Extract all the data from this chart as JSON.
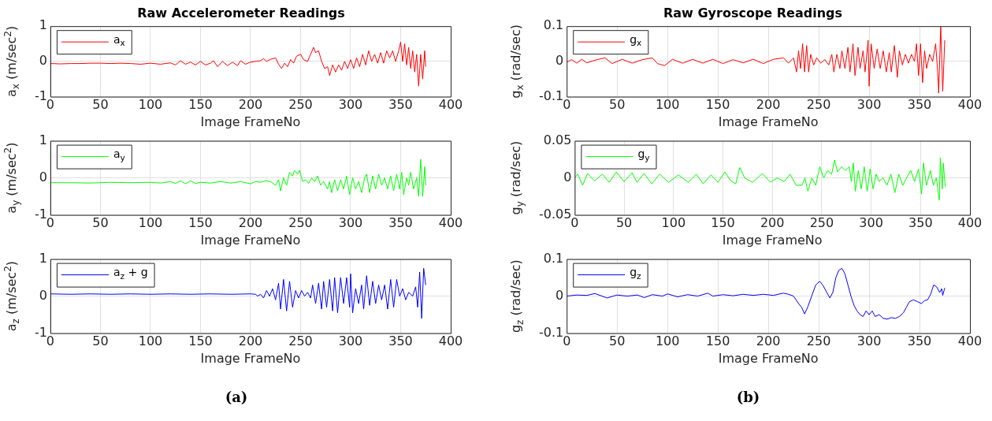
{
  "chart_data": [
    {
      "type": "line",
      "title": "Raw Accelerometer Readings",
      "xlabel": "Image FrameNo",
      "ylabel": "a$_{x}$ (m/sec$^{2}$)",
      "xlim": [
        0,
        400
      ],
      "xticks": [
        0,
        50,
        100,
        150,
        200,
        250,
        300,
        350,
        400
      ],
      "ylim": [
        -1,
        1
      ],
      "yticks": [
        -1,
        0,
        1
      ],
      "grid": true,
      "legend": "top left",
      "x": [
        0,
        10,
        20,
        30,
        40,
        50,
        60,
        70,
        80,
        90,
        100,
        110,
        120,
        125,
        130,
        135,
        140,
        145,
        150,
        155,
        160,
        163,
        167,
        172,
        177,
        182,
        187,
        190,
        195,
        200,
        205,
        210,
        213,
        216,
        220,
        225,
        228,
        231,
        234,
        237,
        240,
        243,
        246,
        250,
        253,
        257,
        260,
        263,
        265,
        268,
        271,
        274,
        277,
        279,
        282,
        285,
        288,
        291,
        294,
        297,
        300,
        303,
        306,
        309,
        312,
        315,
        318,
        321,
        324,
        327,
        330,
        333,
        336,
        339,
        342,
        345,
        348,
        350,
        352,
        354,
        356,
        358,
        360,
        362,
        364,
        366,
        368,
        370,
        372,
        374,
        375
      ],
      "series": [
        {
          "name": "a$_{x}$",
          "color": "#ff0000",
          "values": [
            -0.06,
            -0.07,
            -0.06,
            -0.06,
            -0.05,
            -0.05,
            -0.06,
            -0.05,
            -0.06,
            -0.08,
            -0.05,
            -0.08,
            -0.04,
            -0.1,
            0.02,
            -0.08,
            -0.02,
            -0.1,
            0.0,
            -0.1,
            -0.05,
            0.02,
            -0.15,
            0.0,
            -0.12,
            -0.02,
            -0.12,
            0.02,
            -0.08,
            -0.02,
            0.0,
            0.02,
            0.08,
            0.0,
            0.06,
            0.1,
            -0.08,
            -0.2,
            -0.05,
            -0.15,
            0.05,
            -0.05,
            0.15,
            0.2,
            0.05,
            0.0,
            0.2,
            0.4,
            0.25,
            0.3,
            0.0,
            -0.2,
            -0.15,
            -0.4,
            -0.1,
            -0.3,
            -0.1,
            -0.25,
            0.0,
            -0.2,
            0.05,
            -0.2,
            0.1,
            -0.15,
            0.2,
            -0.1,
            0.3,
            0.0,
            0.2,
            -0.05,
            0.25,
            -0.05,
            0.3,
            0.1,
            0.3,
            0.0,
            0.3,
            0.55,
            0.0,
            0.5,
            -0.1,
            0.4,
            -0.2,
            0.3,
            -0.3,
            0.2,
            -0.7,
            0.2,
            -0.5,
            0.3,
            -0.15
          ]
        }
      ]
    },
    {
      "type": "line",
      "xlabel": "Image FrameNo",
      "ylabel": "a$_{y}$ (m/sec$^{2}$)",
      "xlim": [
        0,
        400
      ],
      "xticks": [
        0,
        50,
        100,
        150,
        200,
        250,
        300,
        350,
        400
      ],
      "ylim": [
        -1,
        1
      ],
      "yticks": [
        -1,
        0,
        1
      ],
      "grid": true,
      "legend": "top left",
      "x": [
        0,
        20,
        40,
        60,
        80,
        100,
        110,
        120,
        125,
        130,
        135,
        140,
        145,
        150,
        160,
        170,
        180,
        190,
        200,
        205,
        210,
        215,
        220,
        225,
        228,
        230,
        233,
        236,
        239,
        242,
        244,
        247,
        249,
        252,
        255,
        258,
        261,
        264,
        267,
        270,
        273,
        277,
        279,
        281,
        284,
        287,
        290,
        293,
        296,
        299,
        302,
        305,
        308,
        311,
        314,
        316,
        319,
        322,
        325,
        328,
        331,
        334,
        337,
        340,
        343,
        346,
        349,
        351,
        353,
        356,
        358,
        360,
        363,
        366,
        368,
        370,
        372,
        374,
        375
      ],
      "series": [
        {
          "name": "a$_{y}$",
          "color": "#00ff00",
          "values": [
            -0.13,
            -0.13,
            -0.14,
            -0.12,
            -0.13,
            -0.12,
            -0.14,
            -0.1,
            -0.15,
            -0.08,
            -0.16,
            -0.08,
            -0.15,
            -0.12,
            -0.14,
            -0.1,
            -0.14,
            -0.1,
            -0.16,
            -0.1,
            -0.12,
            -0.08,
            -0.1,
            -0.2,
            -0.05,
            -0.35,
            0.0,
            -0.2,
            0.15,
            0.05,
            0.2,
            0.1,
            0.2,
            -0.1,
            -0.05,
            -0.15,
            0.0,
            -0.1,
            0.05,
            -0.2,
            -0.1,
            -0.3,
            -0.1,
            -0.4,
            -0.05,
            -0.35,
            -0.05,
            -0.3,
            0.05,
            -0.45,
            0.0,
            -0.3,
            -0.1,
            -0.4,
            0.0,
            0.1,
            -0.4,
            0.05,
            -0.3,
            0.1,
            -0.2,
            0.0,
            -0.3,
            0.05,
            -0.35,
            0.1,
            -0.3,
            0.15,
            -0.45,
            0.0,
            -0.2,
            0.15,
            -0.3,
            0.0,
            -0.5,
            0.5,
            -0.5,
            0.3,
            -0.2
          ]
        }
      ]
    },
    {
      "type": "line",
      "xlabel": "Image FrameNo",
      "ylabel": "a$_{z}$ (m/sec$^{2}$)",
      "xlim": [
        0,
        400
      ],
      "xticks": [
        0,
        50,
        100,
        150,
        200,
        250,
        300,
        350,
        400
      ],
      "ylim": [
        -1,
        1
      ],
      "yticks": [
        -1,
        0,
        1
      ],
      "grid": true,
      "legend": "top left",
      "annotations": [
        "(a)"
      ],
      "x": [
        0,
        20,
        40,
        60,
        80,
        100,
        120,
        140,
        160,
        180,
        200,
        205,
        207,
        210,
        213,
        216,
        219,
        222,
        225,
        228,
        230,
        233,
        236,
        239,
        242,
        245,
        248,
        251,
        254,
        257,
        260,
        262,
        265,
        268,
        271,
        273,
        276,
        279,
        282,
        284,
        287,
        290,
        293,
        296,
        299,
        300,
        302,
        305,
        308,
        311,
        313,
        316,
        319,
        322,
        325,
        328,
        331,
        334,
        337,
        340,
        343,
        346,
        349,
        352,
        355,
        358,
        362,
        365,
        367,
        369,
        371,
        373,
        375
      ],
      "series": [
        {
          "name": "a$_{z}$ + g",
          "color": "#0000ff",
          "values": [
            0.06,
            0.05,
            0.06,
            0.05,
            0.06,
            0.05,
            0.06,
            0.05,
            0.06,
            0.05,
            0.06,
            0.05,
            0.0,
            0.05,
            -0.05,
            0.15,
            0.0,
            0.2,
            -0.1,
            0.35,
            -0.35,
            0.45,
            -0.4,
            0.4,
            -0.3,
            0.15,
            -0.05,
            0.15,
            0.0,
            0.1,
            -0.05,
            0.3,
            -0.2,
            0.35,
            -0.35,
            0.4,
            -0.3,
            0.45,
            -0.4,
            0.5,
            -0.45,
            0.5,
            -0.2,
            0.5,
            -0.3,
            0.6,
            -0.45,
            0.2,
            -0.2,
            0.3,
            -0.35,
            0.55,
            -0.25,
            0.4,
            -0.2,
            0.3,
            -0.1,
            0.3,
            -0.35,
            0.45,
            -0.3,
            0.45,
            0.0,
            0.2,
            -0.1,
            0.1,
            0.0,
            0.25,
            -0.3,
            0.65,
            -0.6,
            0.75,
            0.3
          ]
        }
      ]
    },
    {
      "type": "line",
      "title": "Raw Gyroscope Readings",
      "xlabel": "Image FrameNo",
      "ylabel": "g$_{x}$ (rad/sec)",
      "xlim": [
        0,
        400
      ],
      "xticks": [
        0,
        50,
        100,
        150,
        200,
        250,
        300,
        350,
        400
      ],
      "ylim": [
        -0.1,
        0.1
      ],
      "yticks": [
        -0.1,
        0,
        0.1
      ],
      "grid": true,
      "legend": "top left",
      "x": [
        0,
        5,
        10,
        15,
        20,
        30,
        38,
        45,
        55,
        65,
        75,
        85,
        90,
        97,
        105,
        115,
        125,
        135,
        145,
        155,
        165,
        175,
        185,
        195,
        205,
        215,
        220,
        225,
        228,
        230,
        232,
        234,
        236,
        238,
        240,
        242,
        245,
        248,
        252,
        256,
        260,
        263,
        265,
        268,
        271,
        273,
        276,
        279,
        281,
        284,
        286,
        289,
        291,
        294,
        296,
        299,
        300,
        302,
        305,
        308,
        311,
        314,
        317,
        320,
        322,
        325,
        328,
        330,
        333,
        336,
        339,
        342,
        345,
        347,
        349,
        351,
        353,
        355,
        357,
        360,
        363,
        366,
        368,
        369,
        371,
        373,
        375
      ],
      "series": [
        {
          "name": "g$_{x}$",
          "color": "#ff0000",
          "values": [
            -0.002,
            0.005,
            -0.005,
            0.006,
            -0.004,
            0.005,
            0.01,
            -0.006,
            0.006,
            -0.005,
            0.005,
            0.01,
            -0.006,
            -0.012,
            0.006,
            -0.005,
            0.006,
            -0.005,
            0.006,
            -0.006,
            0.005,
            -0.004,
            0.006,
            -0.006,
            0.006,
            0.01,
            -0.005,
            0.01,
            -0.03,
            0.03,
            -0.02,
            0.05,
            -0.03,
            0.045,
            -0.03,
            0.02,
            -0.01,
            0.01,
            -0.005,
            0.005,
            -0.01,
            0.02,
            -0.03,
            0.02,
            -0.02,
            0.03,
            -0.02,
            0.04,
            -0.03,
            0.05,
            -0.04,
            0.04,
            -0.02,
            0.03,
            -0.03,
            0.06,
            -0.07,
            0.05,
            -0.02,
            0.035,
            -0.02,
            0.03,
            -0.03,
            0.025,
            -0.03,
            0.045,
            -0.045,
            0.03,
            -0.01,
            0.02,
            -0.005,
            0.02,
            0.0,
            0.05,
            -0.04,
            0.05,
            -0.06,
            0.03,
            -0.02,
            0.02,
            0.0,
            0.05,
            -0.03,
            -0.09,
            0.1,
            -0.085,
            0.06
          ]
        }
      ]
    },
    {
      "type": "line",
      "xlabel": "Image FrameNo",
      "ylabel": "g$_{y}$ (rad/sec)",
      "xlim": [
        0,
        400
      ],
      "xticks": [
        0,
        50,
        100,
        150,
        200,
        250,
        300,
        350,
        400
      ],
      "ylim": [
        -0.05,
        0.05
      ],
      "yticks": [
        -0.05,
        0,
        0.05
      ],
      "grid": true,
      "legend": "top left",
      "x": [
        0,
        3,
        8,
        13,
        20,
        28,
        35,
        42,
        50,
        58,
        63,
        70,
        78,
        86,
        95,
        105,
        115,
        123,
        130,
        138,
        145,
        152,
        158,
        163,
        167,
        172,
        180,
        190,
        198,
        205,
        212,
        218,
        224,
        230,
        233,
        236,
        240,
        244,
        248,
        252,
        256,
        260,
        263,
        266,
        270,
        274,
        278,
        280,
        282,
        284,
        287,
        290,
        293,
        296,
        299,
        302,
        305,
        308,
        312,
        316,
        320,
        324,
        328,
        332,
        336,
        340,
        344,
        348,
        351,
        353,
        356,
        360,
        363,
        366,
        369,
        370,
        372,
        373,
        375
      ],
      "series": [
        {
          "name": "g$_{y}$",
          "color": "#00ff00",
          "values": [
            0.0,
            0.005,
            -0.01,
            0.006,
            -0.004,
            0.005,
            -0.006,
            0.008,
            -0.005,
            0.007,
            -0.006,
            0.006,
            -0.008,
            0.005,
            -0.006,
            0.004,
            -0.006,
            0.005,
            -0.008,
            0.004,
            -0.006,
            0.008,
            -0.004,
            -0.008,
            0.014,
            0.0,
            -0.006,
            0.006,
            -0.006,
            0.0,
            -0.005,
            0.005,
            -0.01,
            -0.01,
            0.0,
            -0.018,
            0.0,
            -0.01,
            0.015,
            0.0,
            0.01,
            0.005,
            0.024,
            0.008,
            0.015,
            0.01,
            0.015,
            -0.005,
            0.02,
            -0.018,
            0.01,
            -0.015,
            0.015,
            -0.018,
            0.012,
            -0.015,
            0.005,
            -0.005,
            0.0,
            -0.01,
            0.005,
            -0.02,
            0.005,
            -0.01,
            0.0,
            0.01,
            -0.005,
            0.012,
            -0.022,
            0.02,
            -0.01,
            0.01,
            -0.01,
            0.0,
            -0.03,
            0.027,
            -0.015,
            0.02,
            -0.012
          ]
        }
      ]
    },
    {
      "type": "line",
      "xlabel": "Image FrameNo",
      "ylabel": "g$_{z}$ (rad/sec)",
      "xlim": [
        0,
        400
      ],
      "xticks": [
        0,
        50,
        100,
        150,
        200,
        250,
        300,
        350,
        400
      ],
      "ylim": [
        -0.1,
        0.1
      ],
      "yticks": [
        -0.1,
        0,
        0.1
      ],
      "grid": true,
      "legend": "top left",
      "annotations": [
        "(b)"
      ],
      "x": [
        0,
        10,
        20,
        28,
        35,
        40,
        50,
        60,
        70,
        77,
        85,
        95,
        100,
        110,
        120,
        130,
        140,
        145,
        155,
        165,
        175,
        185,
        195,
        205,
        215,
        220,
        225,
        230,
        233,
        236,
        239,
        243,
        247,
        251,
        254,
        258,
        261,
        264,
        267,
        270,
        273,
        276,
        279,
        282,
        285,
        288,
        291,
        294,
        297,
        300,
        303,
        306,
        310,
        314,
        318,
        322,
        326,
        330,
        334,
        337,
        340,
        344,
        348,
        352,
        355,
        358,
        361,
        364,
        367,
        370,
        372,
        373,
        375
      ],
      "series": [
        {
          "name": "g$_{z}$",
          "color": "#0000ff",
          "values": [
            0.0,
            0.003,
            0.002,
            0.007,
            0.0,
            -0.005,
            0.003,
            0.0,
            0.003,
            -0.004,
            0.004,
            0.0,
            0.006,
            -0.002,
            0.004,
            0.0,
            0.008,
            0.0,
            0.004,
            0.001,
            0.005,
            0.002,
            0.005,
            0.002,
            0.008,
            0.005,
            0.0,
            -0.02,
            -0.03,
            -0.048,
            -0.03,
            0.0,
            0.03,
            0.04,
            0.03,
            0.01,
            -0.005,
            0.01,
            0.05,
            0.07,
            0.075,
            0.06,
            0.03,
            0.0,
            -0.025,
            -0.04,
            -0.05,
            -0.055,
            -0.04,
            -0.05,
            -0.04,
            -0.055,
            -0.05,
            -0.06,
            -0.062,
            -0.058,
            -0.06,
            -0.055,
            -0.045,
            -0.03,
            -0.015,
            -0.01,
            -0.015,
            -0.02,
            -0.012,
            -0.01,
            0.005,
            0.03,
            0.025,
            0.01,
            0.02,
            0.002,
            0.022
          ]
        }
      ]
    }
  ]
}
